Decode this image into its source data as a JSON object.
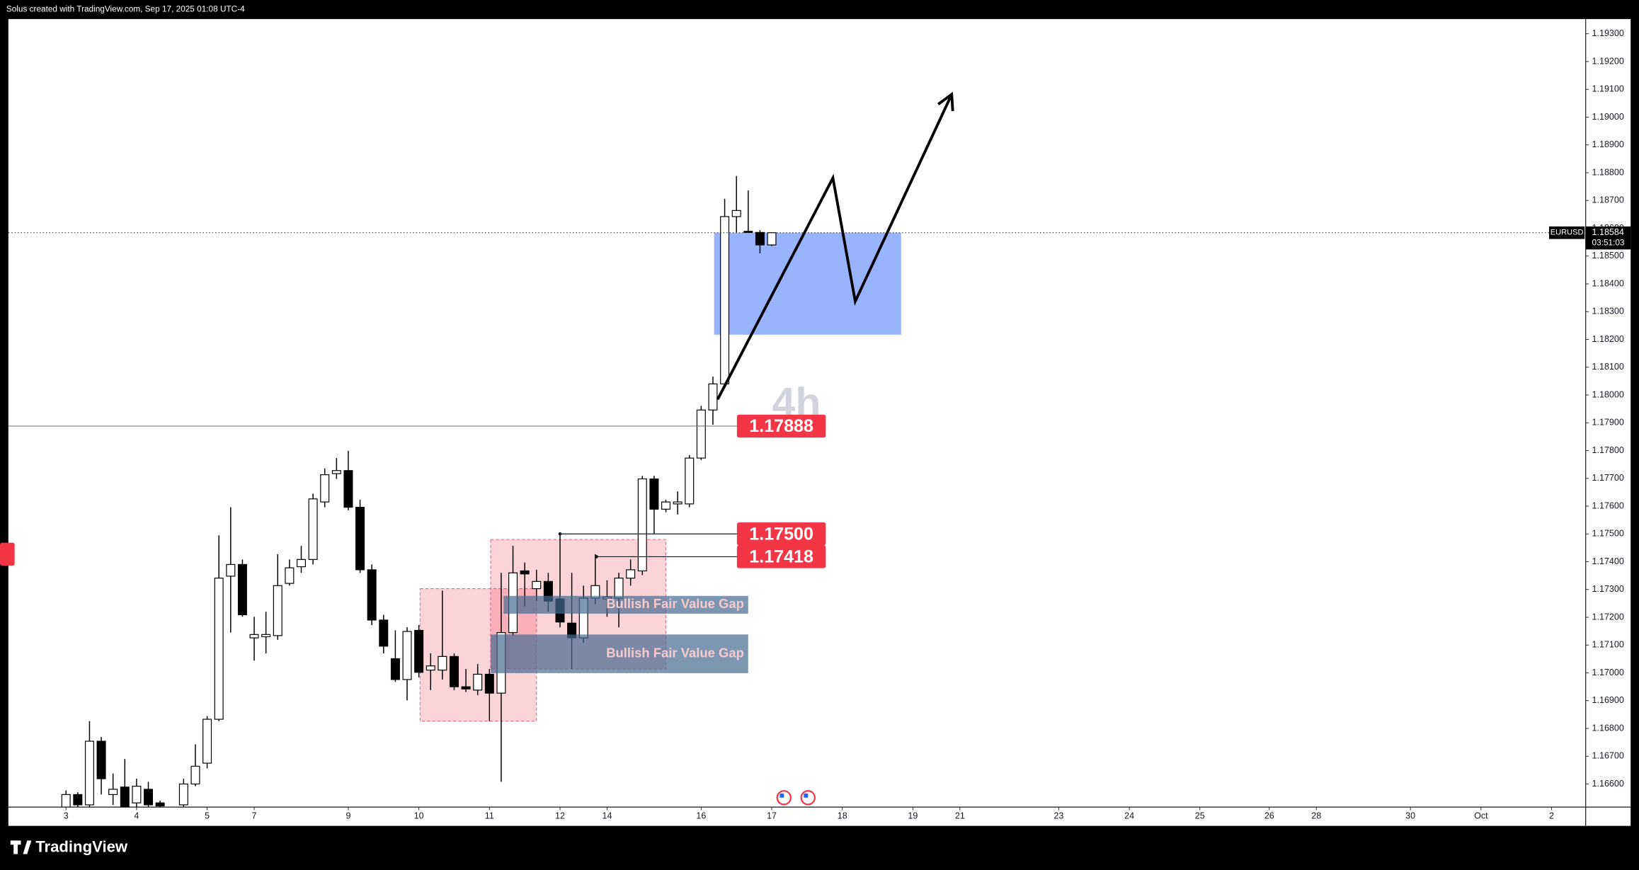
{
  "header": {
    "text": "Solus created with TradingView.com, Sep 17, 2025 01:08 UTC-4"
  },
  "footer": {
    "brand": "TradingView"
  },
  "chart_data": {
    "type": "candlestick",
    "interval": "4h",
    "up_color": "#ffffff",
    "down_color": "#000000",
    "x": [
      0,
      1,
      2,
      3,
      4,
      5,
      6,
      7,
      8,
      10,
      11,
      12,
      13,
      14,
      15,
      16,
      17,
      18,
      19,
      20,
      21,
      22,
      23,
      24,
      25,
      26,
      27,
      28,
      29,
      30,
      31,
      32,
      33,
      34,
      35,
      36,
      37,
      38,
      39,
      40,
      41,
      42,
      43,
      44,
      45,
      46,
      47,
      48,
      49,
      50,
      51,
      52,
      53,
      54,
      55,
      56,
      57,
      58,
      59,
      60
    ],
    "open": [
      1.16517,
      1.16562,
      1.16525,
      1.16754,
      1.16562,
      1.16589,
      1.16532,
      1.16581,
      1.16532,
      1.16525,
      1.166,
      1.16675,
      1.16833,
      1.17348,
      1.1739,
      1.17126,
      1.1713,
      1.17134,
      1.17322,
      1.17382,
      1.17408,
      1.17615,
      1.17717,
      1.17728,
      1.17596,
      1.17371,
      1.1719,
      1.17051,
      1.16976,
      1.17153,
      1.1701,
      1.1701,
      1.17059,
      1.1695,
      1.16938,
      1.16995,
      1.16927,
      1.17145,
      1.17367,
      1.17303,
      1.17329,
      1.17266,
      1.17179,
      1.17126,
      1.17269,
      1.17266,
      1.17269,
      1.17341,
      1.17367,
      1.17698,
      1.17589,
      1.17608,
      1.17608,
      1.17773,
      1.17946,
      1.1804,
      1.18642,
      1.18589,
      1.18585,
      1.1854
    ],
    "high": [
      1.16577,
      1.1657,
      1.16826,
      1.16769,
      1.16638,
      1.1669,
      1.16619,
      1.16608,
      1.1654,
      1.16619,
      1.16743,
      1.16844,
      1.17495,
      1.17596,
      1.17408,
      1.17202,
      1.1722,
      1.17427,
      1.17408,
      1.17457,
      1.17645,
      1.17736,
      1.17773,
      1.17799,
      1.17623,
      1.1739,
      1.17209,
      1.17153,
      1.17164,
      1.17172,
      1.1707,
      1.17296,
      1.1707,
      1.17014,
      1.17032,
      1.17014,
      1.1736,
      1.17457,
      1.17397,
      1.17371,
      1.1736,
      1.17495,
      1.1736,
      1.17314,
      1.17427,
      1.17333,
      1.1736,
      1.17408,
      1.17709,
      1.17709,
      1.17623,
      1.17653,
      1.17784,
      1.17961,
      1.18066,
      1.18706,
      1.18788,
      1.18736,
      1.18593,
      1.18585
    ],
    "low": [
      1.16517,
      1.16517,
      1.16517,
      1.16562,
      1.16525,
      1.16517,
      1.16517,
      1.16517,
      1.16517,
      1.16517,
      1.16592,
      1.16656,
      1.16826,
      1.17145,
      1.17202,
      1.17044,
      1.1707,
      1.17119,
      1.17314,
      1.1736,
      1.1739,
      1.17596,
      1.17698,
      1.17585,
      1.1736,
      1.17172,
      1.1707,
      1.16968,
      1.16901,
      1.16984,
      1.16938,
      1.16976,
      1.16938,
      1.16931,
      1.1692,
      1.16826,
      1.16608,
      1.17134,
      1.17239,
      1.17258,
      1.1722,
      1.17164,
      1.17014,
      1.17108,
      1.17247,
      1.17202,
      1.17164,
      1.17314,
      1.17352,
      1.17502,
      1.17578,
      1.1757,
      1.17596,
      1.17766,
      1.17893,
      1.18029,
      1.18585,
      1.18585,
      1.1851,
      1.18536
    ],
    "close": [
      1.16562,
      1.16525,
      1.16754,
      1.16619,
      1.16581,
      1.16517,
      1.16592,
      1.16525,
      1.16521,
      1.166,
      1.16664,
      1.16833,
      1.17341,
      1.1739,
      1.17209,
      1.17138,
      1.17138,
      1.17314,
      1.17378,
      1.17408,
      1.17626,
      1.17713,
      1.17728,
      1.17596,
      1.17371,
      1.1719,
      1.17096,
      1.16976,
      1.17149,
      1.17002,
      1.17025,
      1.17059,
      1.1695,
      1.16942,
      1.16995,
      1.16927,
      1.17145,
      1.1736,
      1.17356,
      1.17329,
      1.17258,
      1.17183,
      1.17126,
      1.17269,
      1.17314,
      1.17273,
      1.17341,
      1.17371,
      1.17698,
      1.17589,
      1.17615,
      1.17615,
      1.17773,
      1.17946,
      1.1804,
      1.18642,
      1.18664,
      1.18585,
      1.1854,
      1.18584
    ],
    "xlim": [
      -4.9,
      129.2
    ],
    "ylim": [
      1.16517,
      1.19353
    ],
    "xticks": [
      {
        "value": 0,
        "label": "3"
      },
      {
        "value": 6,
        "label": "4"
      },
      {
        "value": 12,
        "label": "5"
      },
      {
        "value": 16,
        "label": "7"
      },
      {
        "value": 24,
        "label": "9"
      },
      {
        "value": 30,
        "label": "10"
      },
      {
        "value": 36,
        "label": "11"
      },
      {
        "value": 42,
        "label": "12"
      },
      {
        "value": 46,
        "label": "14"
      },
      {
        "value": 54,
        "label": "16"
      },
      {
        "value": 60,
        "label": "17"
      },
      {
        "value": 66,
        "label": "18"
      },
      {
        "value": 72,
        "label": "19"
      },
      {
        "value": 76,
        "label": "21"
      },
      {
        "value": 84.4,
        "label": "23"
      },
      {
        "value": 90.4,
        "label": "24"
      },
      {
        "value": 96.4,
        "label": "25"
      },
      {
        "value": 102.3,
        "label": "26"
      },
      {
        "value": 106.3,
        "label": "28"
      },
      {
        "value": 114.3,
        "label": "30"
      },
      {
        "value": 120.3,
        "label": "Oct"
      },
      {
        "value": 126.3,
        "label": "2"
      }
    ],
    "yticks": [
      {
        "value": 1.166,
        "label": "1.16600"
      },
      {
        "value": 1.167,
        "label": "1.16700"
      },
      {
        "value": 1.168,
        "label": "1.16800"
      },
      {
        "value": 1.169,
        "label": "1.16900"
      },
      {
        "value": 1.17,
        "label": "1.17000"
      },
      {
        "value": 1.171,
        "label": "1.17100"
      },
      {
        "value": 1.172,
        "label": "1.17200"
      },
      {
        "value": 1.173,
        "label": "1.17300"
      },
      {
        "value": 1.174,
        "label": "1.17400"
      },
      {
        "value": 1.175,
        "label": "1.17500"
      },
      {
        "value": 1.176,
        "label": "1.17600"
      },
      {
        "value": 1.177,
        "label": "1.17700"
      },
      {
        "value": 1.178,
        "label": "1.17800"
      },
      {
        "value": 1.179,
        "label": "1.17900"
      },
      {
        "value": 1.18,
        "label": "1.18000"
      },
      {
        "value": 1.181,
        "label": "1.18100"
      },
      {
        "value": 1.182,
        "label": "1.18200"
      },
      {
        "value": 1.183,
        "label": "1.18300"
      },
      {
        "value": 1.184,
        "label": "1.18400"
      },
      {
        "value": 1.185,
        "label": "1.18500"
      },
      {
        "value": 1.186,
        "label": "1.18600"
      },
      {
        "value": 1.187,
        "label": "1.18700"
      },
      {
        "value": 1.188,
        "label": "1.18800"
      },
      {
        "value": 1.189,
        "label": "1.18900"
      },
      {
        "value": 1.19,
        "label": "1.19000"
      },
      {
        "value": 1.191,
        "label": "1.19100"
      },
      {
        "value": 1.192,
        "label": "1.19200"
      },
      {
        "value": 1.193,
        "label": "1.19300"
      }
    ],
    "grid": false,
    "zones": [
      {
        "x0": 55.1,
        "x1": 71,
        "y0": 1.18217,
        "y1": 1.18584,
        "color": "#99b4fe"
      },
      {
        "x0": 30.1,
        "x1": 40,
        "y0": 1.16826,
        "y1": 1.17303,
        "color": "rgba(242,54,69,0.22)",
        "border": "dashed"
      },
      {
        "x0": 36.1,
        "x1": 51,
        "y0": 1.17014,
        "y1": 1.1748,
        "color": "rgba(242,54,69,0.22)",
        "border": "dashed"
      }
    ],
    "fvgs": [
      {
        "x0": 37.2,
        "x1": 58,
        "y0": 1.17213,
        "y1": 1.17277,
        "color": "rgba(70,105,145,0.7)",
        "label": "Bullish Fair Value Gap"
      },
      {
        "x0": 36.1,
        "x1": 58,
        "y0": 1.16999,
        "y1": 1.17138,
        "color": "rgba(70,105,145,0.7)",
        "label": "Bullish Fair Value Gap"
      }
    ],
    "level_color": "#f23645",
    "levels": [
      {
        "value": 1.17888,
        "label": "1.17888"
      },
      {
        "value": 1.175,
        "label": "1.17500",
        "from": 42
      },
      {
        "value": 1.17418,
        "label": "1.17418",
        "from": 45.1
      }
    ],
    "projection": {
      "x": [
        55.4,
        65.2,
        67.1,
        75.3
      ],
      "y": [
        1.17984,
        1.18781,
        1.18337,
        1.19082
      ],
      "color": "#000000"
    },
    "last_price": {
      "symbol": "EURUSD",
      "value": 1.18584,
      "countdown": "03:51:03"
    }
  }
}
